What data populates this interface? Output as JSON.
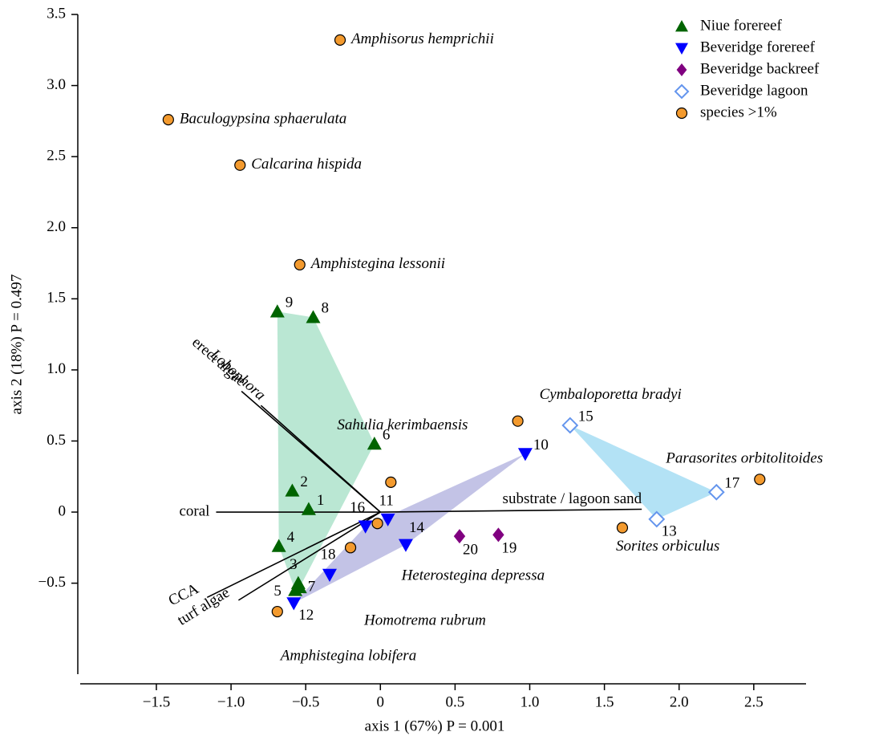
{
  "chart_data": {
    "type": "scatter",
    "xlabel": "axis 1 (67%) P = 0.001",
    "ylabel": "axis 2 (18%) P = 0.497",
    "xlim": [
      -2.01,
      2.85
    ],
    "ylim": [
      -1.14,
      3.5
    ],
    "xticks": [
      {
        "value": -1.5,
        "label": "−1.5"
      },
      {
        "value": -1,
        "label": "−1.0"
      },
      {
        "value": -0.5,
        "label": "−0.5"
      },
      0,
      0.5,
      {
        "value": 1,
        "label": "1.0"
      },
      1.5,
      {
        "value": 2,
        "label": "2.0"
      },
      2.5
    ],
    "yticks": [
      {
        "value": -0.5,
        "label": "−0.5"
      },
      0,
      0.5,
      {
        "value": 1,
        "label": "1.0"
      },
      1.5,
      {
        "value": 2,
        "label": "2.0"
      },
      2.5,
      {
        "value": 3,
        "label": "3.0"
      },
      3.5
    ],
    "legend": "upper right",
    "series": [
      {
        "name": "Niue forereef",
        "color": "#006400",
        "marker": "triangle-up",
        "hull_color": "#aee3cb",
        "labels": [
          "1",
          "2",
          "3",
          "4",
          "5",
          "6",
          "7",
          "8",
          "9"
        ],
        "x": [
          -0.48,
          -0.59,
          -0.55,
          -0.68,
          -0.57,
          -0.04,
          -0.54,
          -0.45,
          -0.69
        ],
        "y": [
          0.02,
          0.15,
          -0.5,
          -0.24,
          -0.55,
          0.48,
          -0.53,
          1.37,
          1.41
        ]
      },
      {
        "name": "Beveridge forereef",
        "color": "#0000ff",
        "marker": "triangle-down",
        "hull_color": "#b9b9e2",
        "labels": [
          "10",
          "11",
          "12",
          "14",
          "16",
          "18"
        ],
        "x": [
          0.97,
          0.05,
          -0.58,
          0.17,
          -0.1,
          -0.34
        ],
        "y": [
          0.41,
          -0.05,
          -0.64,
          -0.23,
          -0.1,
          -0.44
        ]
      },
      {
        "name": "Beveridge backreef",
        "color": "#800080",
        "marker": "diamond",
        "labels": [
          "19",
          "20"
        ],
        "x": [
          0.79,
          0.53
        ],
        "y": [
          -0.16,
          -0.17
        ]
      },
      {
        "name": "Beveridge lagoon",
        "color": "#6495ed",
        "marker": "open-diamond",
        "hull_color": "#a6ddf3",
        "labels": [
          "13",
          "15",
          "17"
        ],
        "x": [
          1.85,
          1.27,
          2.25
        ],
        "y": [
          -0.05,
          0.61,
          0.14
        ]
      },
      {
        "name": "species >1%",
        "color": "#f39a2e",
        "marker": "circle",
        "label_color": "#e8643c",
        "labels": [
          "Amphisorus hemprichii",
          "Baculogypsina sphaerulata",
          "Calcarina hispida",
          "Amphistegina lessonii",
          "Cymbaloporetta bradyi",
          "Sahulia kerimbaensis",
          "Parasorites orbitolitoides",
          "Sorites orbiculus",
          "Heterostegina depressa",
          "Homotrema rubrum",
          "Amphistegina lobifera"
        ],
        "x": [
          -0.27,
          -1.42,
          -0.94,
          -0.54,
          0.92,
          0.07,
          2.54,
          1.62,
          -0.02,
          -0.2,
          -0.69
        ],
        "y": [
          3.32,
          2.76,
          2.44,
          1.74,
          0.64,
          0.21,
          0.23,
          -0.11,
          -0.08,
          -0.25,
          -0.7
        ]
      }
    ],
    "vectors": [
      {
        "label": "erect algae",
        "x": -0.93,
        "y": 0.85
      },
      {
        "label": "Lobophora",
        "x": -0.8,
        "y": 0.75
      },
      {
        "label": "coral",
        "x": -1.1,
        "y": 0
      },
      {
        "label": "substrate / lagoon sand",
        "x": 1.75,
        "y": 0.02
      },
      {
        "label": "CCA",
        "x": -1.16,
        "y": -0.6
      },
      {
        "label": "turf algae",
        "x": -0.95,
        "y": -0.62
      }
    ]
  }
}
